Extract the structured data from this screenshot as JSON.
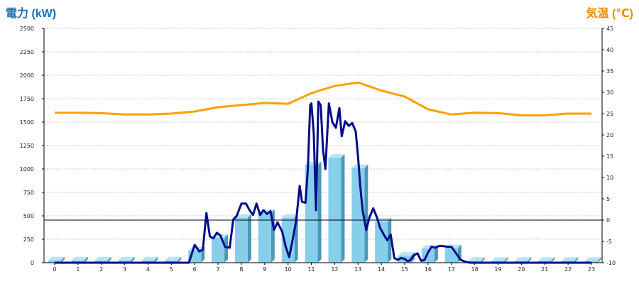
{
  "chart_data": {
    "type": "bar",
    "title": "",
    "left_axis": {
      "label": "電力 (kW)",
      "range": [
        0,
        2500
      ],
      "ticks": [
        0,
        250,
        500,
        750,
        1000,
        1250,
        1500,
        1750,
        2000,
        2250,
        2500
      ],
      "color": "#1a6fb5"
    },
    "right_axis": {
      "label": "気温 (℃)",
      "range": [
        -10,
        45
      ],
      "ticks": [
        -10,
        -5,
        0,
        5,
        10,
        15,
        20,
        25,
        30,
        35,
        40,
        45
      ],
      "color": "#f08c00"
    },
    "x_ticks": [
      "0",
      "1",
      "2",
      "3",
      "4",
      "5",
      "6",
      "7",
      "8",
      "9",
      "10",
      "11",
      "12",
      "13",
      "14",
      "15",
      "16",
      "17",
      "18",
      "19",
      "20",
      "21",
      "22",
      "23"
    ],
    "grid": true,
    "zero_line_temperature": 0,
    "bars": {
      "axis": "left",
      "color": "#87ceeb",
      "x": [
        0,
        1,
        2,
        3,
        4,
        5,
        6,
        7,
        8,
        9,
        10,
        11,
        12,
        13,
        14,
        15,
        16,
        17,
        18,
        19,
        20,
        21,
        22,
        23
      ],
      "values": [
        25,
        25,
        25,
        25,
        25,
        25,
        130,
        265,
        480,
        530,
        480,
        1040,
        1120,
        1010,
        440,
        75,
        150,
        155,
        20,
        20,
        20,
        20,
        20,
        20
      ]
    },
    "power_line": {
      "axis": "left",
      "color": "#000c8c",
      "x": [
        0,
        1,
        2,
        3,
        4,
        5,
        5.5,
        5.75,
        6.0,
        6.2,
        6.35,
        6.5,
        6.65,
        6.8,
        6.95,
        7.1,
        7.3,
        7.5,
        7.65,
        7.8,
        8.0,
        8.2,
        8.35,
        8.5,
        8.65,
        8.8,
        8.95,
        9.1,
        9.25,
        9.4,
        9.55,
        9.75,
        9.9,
        10.05,
        10.2,
        10.35,
        10.5,
        10.6,
        10.75,
        10.85,
        10.95,
        11.0,
        11.1,
        11.2,
        11.3,
        11.4,
        11.5,
        11.6,
        11.75,
        11.9,
        12.05,
        12.2,
        12.3,
        12.45,
        12.6,
        12.75,
        12.9,
        13.0,
        13.1,
        13.2,
        13.35,
        13.5,
        13.65,
        13.8,
        13.95,
        14.1,
        14.25,
        14.4,
        14.55,
        14.7,
        14.85,
        15.0,
        15.1,
        15.2,
        15.4,
        15.55,
        15.7,
        15.85,
        16.0,
        16.15,
        16.3,
        16.5,
        16.7,
        16.85,
        17.0,
        17.2,
        17.4,
        17.6,
        17.8,
        18.0,
        19,
        20,
        21,
        22,
        23
      ],
      "values": [
        0,
        0,
        0,
        0,
        0,
        0,
        0,
        0,
        190,
        120,
        140,
        530,
        280,
        260,
        320,
        290,
        170,
        160,
        460,
        500,
        630,
        630,
        560,
        510,
        630,
        510,
        560,
        520,
        550,
        350,
        430,
        330,
        170,
        60,
        250,
        450,
        820,
        650,
        640,
        1000,
        1680,
        1700,
        1380,
        560,
        1720,
        1680,
        1200,
        1000,
        1700,
        1500,
        1440,
        1650,
        1350,
        1510,
        1460,
        1490,
        1400,
        1130,
        800,
        550,
        350,
        490,
        580,
        490,
        370,
        300,
        240,
        300,
        50,
        30,
        50,
        40,
        20,
        20,
        80,
        100,
        20,
        30,
        110,
        170,
        160,
        180,
        175,
        170,
        170,
        100,
        30,
        10,
        0,
        0,
        0,
        0,
        0,
        0,
        0
      ]
    },
    "temperature_line": {
      "axis": "right",
      "color": "#ffa000",
      "x": [
        0,
        1,
        2,
        3,
        4,
        5,
        6,
        7,
        8,
        9,
        10,
        11,
        12,
        13,
        14,
        15,
        16,
        17,
        18,
        19,
        20,
        21,
        22,
        23
      ],
      "values": [
        25.2,
        25.2,
        25.1,
        24.8,
        24.8,
        25.0,
        25.5,
        26.5,
        27.0,
        27.5,
        27.3,
        29.8,
        31.5,
        32.3,
        30.4,
        29.0,
        26.0,
        24.8,
        25.2,
        25.1,
        24.6,
        24.6,
        25.0,
        25.0
      ]
    }
  }
}
